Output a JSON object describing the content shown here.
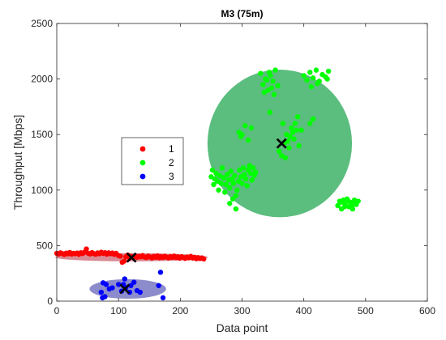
{
  "chart_data": {
    "type": "scatter",
    "title": "M3 (75m)",
    "xlabel": "Data point",
    "ylabel": "Throughput [Mbps]",
    "xlim": [
      0,
      600
    ],
    "ylim": [
      0,
      2500
    ],
    "xticks": [
      0,
      100,
      200,
      300,
      400,
      500,
      600
    ],
    "yticks": [
      0,
      500,
      1000,
      1500,
      2000,
      2500
    ],
    "grid": false,
    "legend": {
      "position": "center-left",
      "entries": [
        "1",
        "2",
        "3"
      ]
    },
    "series": [
      {
        "name": "1",
        "color": "#ff0000",
        "ellipse_color": "#d98a94",
        "centroid": [
          121,
          392
        ],
        "ellipse": {
          "cx": 121,
          "cy": 395,
          "rx": 124,
          "ry": 37
        },
        "points": [
          [
            0,
            430
          ],
          [
            3,
            425
          ],
          [
            6,
            435
          ],
          [
            9,
            428
          ],
          [
            12,
            420
          ],
          [
            15,
            432
          ],
          [
            18,
            426
          ],
          [
            21,
            438
          ],
          [
            24,
            424
          ],
          [
            27,
            430
          ],
          [
            30,
            427
          ],
          [
            33,
            433
          ],
          [
            36,
            422
          ],
          [
            39,
            436
          ],
          [
            42,
            429
          ],
          [
            45,
            441
          ],
          [
            48,
            470
          ],
          [
            51,
            431
          ],
          [
            54,
            425
          ],
          [
            57,
            437
          ],
          [
            60,
            428
          ],
          [
            63,
            422
          ],
          [
            66,
            434
          ],
          [
            69,
            427
          ],
          [
            72,
            440
          ],
          [
            75,
            430
          ],
          [
            78,
            436
          ],
          [
            81,
            423
          ],
          [
            84,
            435
          ],
          [
            87,
            427
          ],
          [
            90,
            433
          ],
          [
            93,
            421
          ],
          [
            96,
            430
          ],
          [
            100,
            410
          ],
          [
            103,
            405
          ],
          [
            106,
            350
          ],
          [
            109,
            360
          ],
          [
            112,
            400
          ],
          [
            115,
            415
          ],
          [
            118,
            390
          ],
          [
            121,
            402
          ],
          [
            124,
            398
          ],
          [
            127,
            408
          ],
          [
            130,
            395
          ],
          [
            133,
            403
          ],
          [
            136,
            399
          ],
          [
            139,
            410
          ],
          [
            142,
            397
          ],
          [
            145,
            392
          ],
          [
            148,
            405
          ],
          [
            151,
            398
          ],
          [
            154,
            388
          ],
          [
            157,
            402
          ],
          [
            160,
            395
          ],
          [
            163,
            408
          ],
          [
            166,
            391
          ],
          [
            169,
            400
          ],
          [
            172,
            393
          ],
          [
            175,
            404
          ],
          [
            178,
            396
          ],
          [
            181,
            389
          ],
          [
            184,
            401
          ],
          [
            187,
            394
          ],
          [
            190,
            406
          ],
          [
            193,
            392
          ],
          [
            196,
            399
          ],
          [
            199,
            387
          ],
          [
            202,
            400
          ],
          [
            205,
            393
          ],
          [
            208,
            385
          ],
          [
            211,
            398
          ],
          [
            214,
            390
          ],
          [
            217,
            403
          ],
          [
            220,
            388
          ],
          [
            223,
            395
          ],
          [
            226,
            382
          ],
          [
            229,
            391
          ],
          [
            232,
            384
          ],
          [
            235,
            389
          ],
          [
            238,
            380
          ]
        ]
      },
      {
        "name": "2",
        "color": "#00ff00",
        "ellipse_color": "#5bbd7e",
        "centroid": [
          364,
          1420
        ],
        "ellipse": {
          "cx": 361,
          "cy": 1420,
          "rx": 117,
          "ry": 665
        },
        "points": [
          [
            250,
            1120
          ],
          [
            252,
            1180
          ],
          [
            254,
            1050
          ],
          [
            256,
            1100
          ],
          [
            258,
            1150
          ],
          [
            260,
            1080
          ],
          [
            262,
            1000
          ],
          [
            264,
            1130
          ],
          [
            266,
            1060
          ],
          [
            268,
            1200
          ],
          [
            270,
            1110
          ],
          [
            272,
            980
          ],
          [
            274,
            1050
          ],
          [
            276,
            1140
          ],
          [
            278,
            1090
          ],
          [
            280,
            1020
          ],
          [
            282,
            1170
          ],
          [
            284,
            1100
          ],
          [
            286,
            1060
          ],
          [
            288,
            1130
          ],
          [
            290,
            950
          ],
          [
            292,
            1000
          ],
          [
            294,
            1080
          ],
          [
            296,
            1180
          ],
          [
            298,
            1120
          ],
          [
            300,
            1060
          ],
          [
            302,
            1200
          ],
          [
            304,
            1140
          ],
          [
            306,
            1100
          ],
          [
            308,
            1040
          ],
          [
            310,
            1180
          ],
          [
            312,
            1220
          ],
          [
            314,
            1150
          ],
          [
            316,
            1090
          ],
          [
            318,
            1200
          ],
          [
            320,
            1130
          ],
          [
            322,
            1160
          ],
          [
            280,
            880
          ],
          [
            285,
            920
          ],
          [
            290,
            830
          ],
          [
            300,
            1500
          ],
          [
            305,
            1580
          ],
          [
            310,
            1450
          ],
          [
            315,
            1560
          ],
          [
            295,
            1520
          ],
          [
            298,
            1480
          ],
          [
            330,
            2050
          ],
          [
            334,
            1950
          ],
          [
            338,
            2000
          ],
          [
            342,
            1900
          ],
          [
            346,
            2030
          ],
          [
            350,
            1980
          ],
          [
            354,
            2080
          ],
          [
            358,
            1940
          ],
          [
            336,
            1880
          ],
          [
            344,
            2060
          ],
          [
            352,
            1860
          ],
          [
            340,
            1990
          ],
          [
            348,
            1920
          ],
          [
            345,
            1700
          ],
          [
            360,
            1350
          ],
          [
            364,
            1310
          ],
          [
            368,
            1420
          ],
          [
            372,
            1500
          ],
          [
            376,
            1380
          ],
          [
            380,
            1560
          ],
          [
            384,
            1460
          ],
          [
            388,
            1540
          ],
          [
            392,
            1400
          ],
          [
            370,
            1290
          ],
          [
            378,
            1480
          ],
          [
            386,
            1600
          ],
          [
            390,
            1660
          ],
          [
            382,
            1520
          ],
          [
            374,
            1440
          ],
          [
            366,
            1600
          ],
          [
            396,
            1540
          ],
          [
            400,
            2030
          ],
          [
            405,
            1990
          ],
          [
            410,
            2060
          ],
          [
            415,
            2010
          ],
          [
            420,
            2080
          ],
          [
            425,
            1980
          ],
          [
            430,
            2040
          ],
          [
            435,
            2020
          ],
          [
            440,
            2070
          ],
          [
            412,
            1930
          ],
          [
            422,
            1960
          ],
          [
            438,
            2000
          ],
          [
            410,
            1600
          ],
          [
            415,
            1640
          ],
          [
            455,
            860
          ],
          [
            458,
            900
          ],
          [
            461,
            830
          ],
          [
            464,
            910
          ],
          [
            467,
            870
          ],
          [
            470,
            920
          ],
          [
            473,
            850
          ],
          [
            476,
            890
          ],
          [
            479,
            830
          ],
          [
            482,
            910
          ],
          [
            485,
            870
          ],
          [
            488,
            900
          ],
          [
            460,
            890
          ],
          [
            466,
            850
          ],
          [
            472,
            900
          ],
          [
            478,
            860
          ],
          [
            484,
            880
          ]
        ]
      },
      {
        "name": "3",
        "color": "#0000ff",
        "ellipse_color": "#8c8ccc",
        "centroid": [
          110,
          110
        ],
        "ellipse": {
          "cx": 115,
          "cy": 110,
          "rx": 62,
          "ry": 88
        },
        "points": [
          [
            72,
            80
          ],
          [
            75,
            165
          ],
          [
            78,
            40
          ],
          [
            80,
            150
          ],
          [
            85,
            110
          ],
          [
            90,
            120
          ],
          [
            100,
            150
          ],
          [
            105,
            90
          ],
          [
            108,
            150
          ],
          [
            110,
            200
          ],
          [
            112,
            120
          ],
          [
            118,
            80
          ],
          [
            125,
            170
          ],
          [
            130,
            95
          ],
          [
            135,
            80
          ],
          [
            165,
            140
          ],
          [
            168,
            260
          ],
          [
            172,
            30
          ],
          [
            74,
            30
          ],
          [
            120,
            140
          ]
        ]
      }
    ]
  }
}
